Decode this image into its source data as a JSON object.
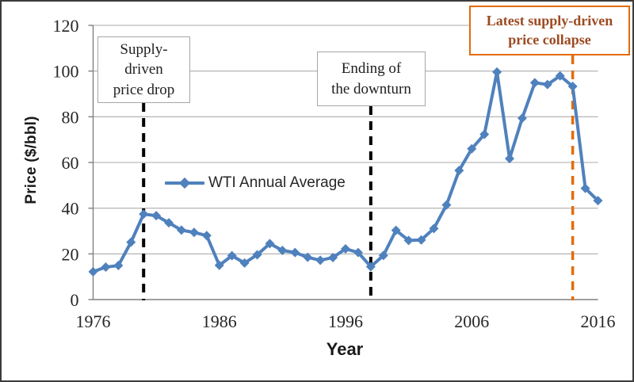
{
  "chart_data": {
    "type": "line",
    "title": "",
    "xlabel": "Year",
    "ylabel": "Price ($/bbl)",
    "legend_position": "inside-left",
    "grid": "horizontal-only",
    "xlim": [
      1976,
      2016
    ],
    "ylim": [
      0,
      120
    ],
    "x_ticks": [
      1976,
      1986,
      1996,
      2006,
      2016
    ],
    "y_ticks": [
      0,
      20,
      40,
      60,
      80,
      100,
      120
    ],
    "x": [
      1976,
      1977,
      1978,
      1979,
      1980,
      1981,
      1982,
      1983,
      1984,
      1985,
      1986,
      1987,
      1988,
      1989,
      1990,
      1991,
      1992,
      1993,
      1994,
      1995,
      1996,
      1997,
      1998,
      1999,
      2000,
      2001,
      2002,
      2003,
      2004,
      2005,
      2006,
      2007,
      2008,
      2009,
      2010,
      2011,
      2012,
      2013,
      2014,
      2015,
      2016
    ],
    "series": [
      {
        "name": "WTI Annual Average",
        "marker": "diamond",
        "values": [
          12.2,
          14.2,
          14.9,
          25.1,
          37.4,
          36.7,
          33.6,
          30.4,
          29.4,
          28.0,
          15.0,
          19.2,
          16.0,
          19.6,
          24.5,
          21.5,
          20.6,
          18.5,
          17.2,
          18.4,
          22.2,
          20.6,
          14.4,
          19.3,
          30.3,
          25.9,
          26.1,
          31.1,
          41.4,
          56.5,
          66.0,
          72.3,
          99.6,
          61.7,
          79.4,
          94.9,
          94.1,
          97.9,
          93.3,
          48.7,
          43.3
        ]
      }
    ],
    "annotations": [
      {
        "id": "supply-drop",
        "text": "Supply-\ndriven\nprice drop",
        "line_x": 1980,
        "line_style": "dashed",
        "line_color": "#000000",
        "border_color": "#a6a6a6",
        "text_color": "#1f1f1f"
      },
      {
        "id": "downturn-end",
        "text": "Ending of\nthe downturn",
        "line_x": 1998,
        "line_style": "dashed",
        "line_color": "#000000",
        "border_color": "#a6a6a6",
        "text_color": "#1f1f1f"
      },
      {
        "id": "latest-collapse",
        "text": "Latest supply-driven\nprice collapse",
        "line_x": 2014,
        "line_style": "dashed",
        "line_color": "#e36c09",
        "border_color": "#e36c09",
        "text_color": "#9c4a21"
      }
    ],
    "colors": {
      "line": "#4f81bd",
      "gridline": "#ababab",
      "axis": "#808080",
      "tick_label": "#262626",
      "accent_orange": "#e36c09"
    }
  }
}
